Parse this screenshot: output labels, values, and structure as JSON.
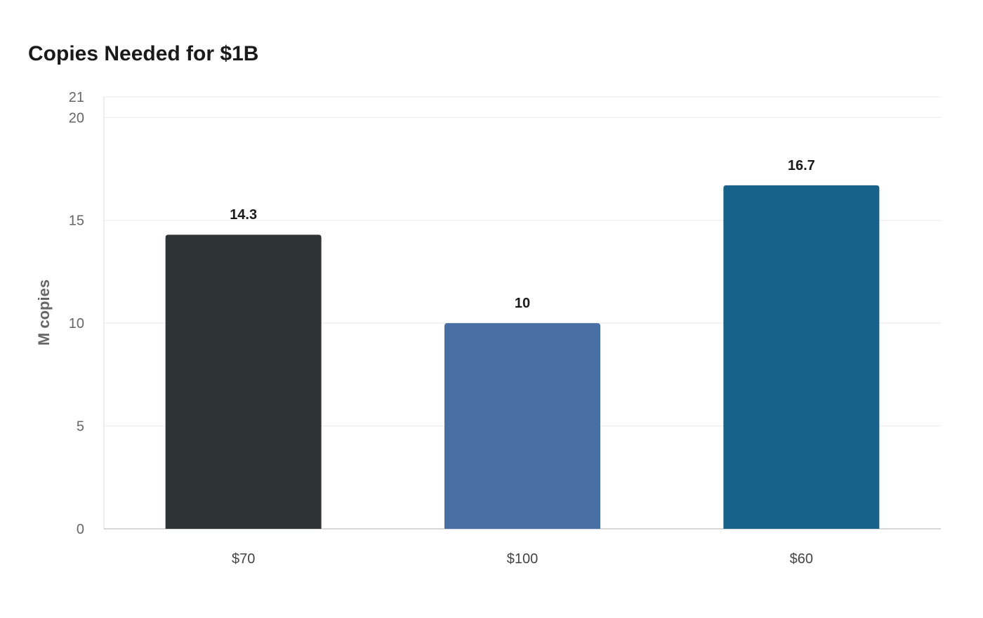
{
  "chart_data": {
    "type": "bar",
    "title": "Copies Needed for $1B",
    "xlabel": "",
    "ylabel": "M copies",
    "categories": [
      "$70",
      "$100",
      "$60"
    ],
    "values": [
      14.3,
      10,
      16.7
    ],
    "data_labels": [
      "14.3",
      "10",
      "16.7"
    ],
    "colors": [
      "#2e3436",
      "#4a6fa5",
      "#18618a"
    ],
    "ylim": [
      0,
      21
    ],
    "yticks": [
      0,
      5,
      10,
      15,
      20,
      21
    ],
    "grid": true,
    "legend": "none"
  }
}
